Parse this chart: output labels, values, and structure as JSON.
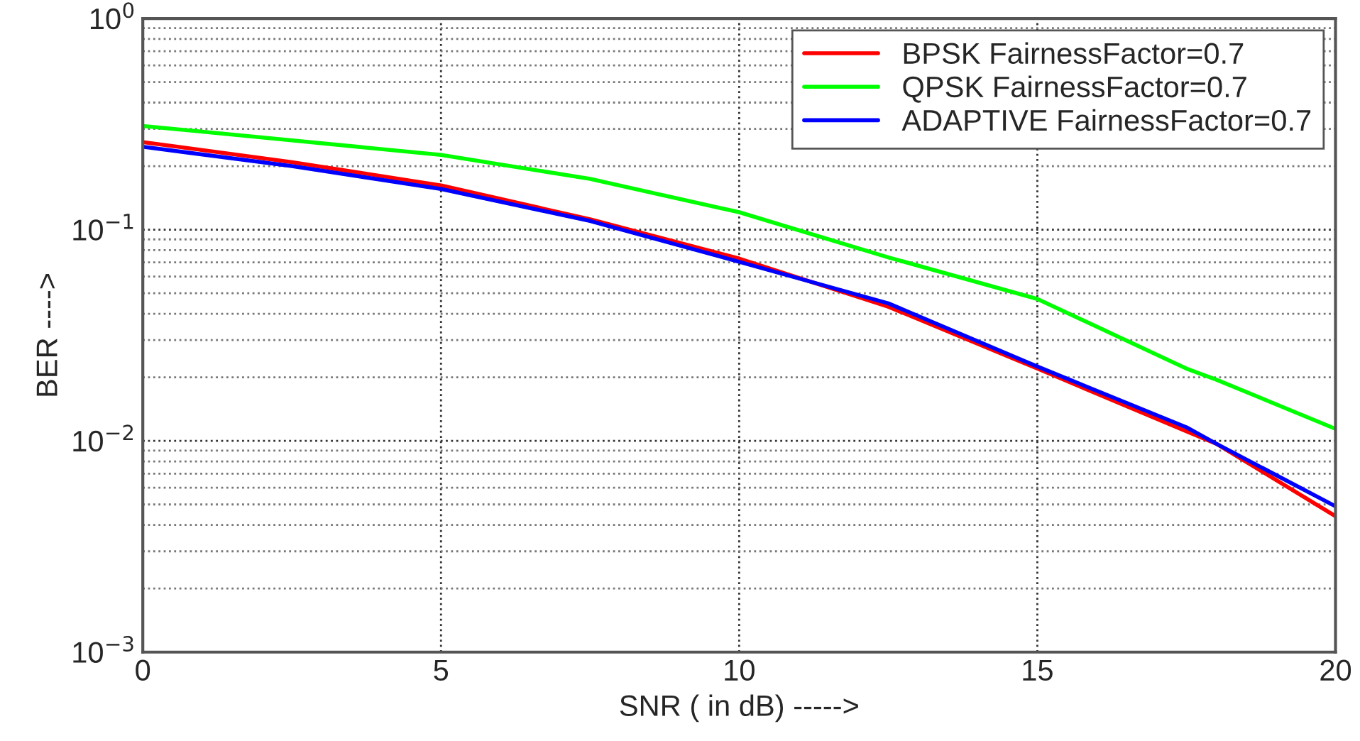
{
  "chart_data": {
    "type": "line",
    "xlabel": "SNR ( in dB) ----->",
    "ylabel": "BER ---->",
    "x": [
      0,
      2.5,
      5,
      7.5,
      10,
      12.5,
      15,
      17.5,
      18,
      20
    ],
    "series": [
      {
        "name": "BPSK FairnessFactor=0.7",
        "color": "#ff0000",
        "values": [
          0.26,
          0.209,
          0.162,
          0.112,
          0.073,
          0.0432,
          0.022,
          0.0111,
          0.0097,
          0.0044
        ]
      },
      {
        "name": "QPSK FairnessFactor=0.7",
        "color": "#00ff00",
        "values": [
          0.31,
          0.265,
          0.226,
          0.174,
          0.121,
          0.074,
          0.047,
          0.022,
          0.0195,
          0.0114
        ]
      },
      {
        "name": "ADAPTIVE FairnessFactor=0.7",
        "color": "#0000ff",
        "values": [
          0.247,
          0.2,
          0.156,
          0.11,
          0.0705,
          0.0448,
          0.0225,
          0.0116,
          0.0097,
          0.0049
        ]
      }
    ],
    "log": "y",
    "xlim": [
      0,
      20
    ],
    "xticks": [
      0,
      5,
      10,
      15,
      20
    ],
    "ylim": [
      0.001,
      1
    ],
    "yticks": [
      {
        "value": 0.001,
        "label": "10$^{−3}$"
      },
      {
        "value": 0.01,
        "label": "10$^{−2}$"
      },
      {
        "value": 0.1,
        "label": "10$^{−1}$"
      },
      {
        "value": 1,
        "label": "10$^{0}$"
      }
    ],
    "grid": true,
    "legend": "top right",
    "line_style": "solid",
    "marker": "none"
  }
}
